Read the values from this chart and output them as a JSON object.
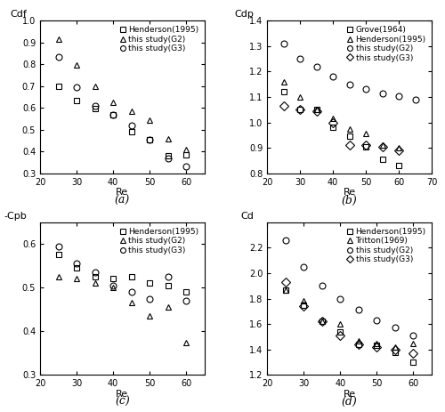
{
  "subplot_a": {
    "ylabel": "Cdf",
    "xlabel": "Re",
    "label": "(a)",
    "xlim": [
      20,
      65
    ],
    "ylim": [
      0.3,
      1.0
    ],
    "yticks": [
      0.3,
      0.4,
      0.5,
      0.6,
      0.7,
      0.8,
      0.9,
      1.0
    ],
    "xticks": [
      20,
      30,
      40,
      50,
      60
    ],
    "series": [
      {
        "label": "Henderson(1995)",
        "marker": "s",
        "x": [
          25,
          30,
          35,
          40,
          45,
          50,
          55,
          60
        ],
        "y": [
          0.7,
          0.635,
          0.595,
          0.57,
          0.49,
          0.455,
          0.38,
          0.385
        ]
      },
      {
        "label": "this study(G2)",
        "marker": "^",
        "x": [
          25,
          30,
          35,
          40,
          45,
          50,
          55,
          60
        ],
        "y": [
          0.915,
          0.795,
          0.7,
          0.625,
          0.585,
          0.545,
          0.46,
          0.41
        ]
      },
      {
        "label": "this study(G3)",
        "marker": "o",
        "x": [
          25,
          30,
          35,
          40,
          45,
          50,
          55,
          60
        ],
        "y": [
          0.835,
          0.695,
          0.61,
          0.57,
          0.52,
          0.455,
          0.37,
          0.33
        ]
      }
    ]
  },
  "subplot_b": {
    "ylabel": "Cdp",
    "xlabel": "Re",
    "label": "(b)",
    "xlim": [
      20,
      70
    ],
    "ylim": [
      0.8,
      1.4
    ],
    "yticks": [
      0.8,
      0.9,
      1.0,
      1.1,
      1.2,
      1.3,
      1.4
    ],
    "xticks": [
      20,
      30,
      40,
      50,
      60,
      70
    ],
    "series": [
      {
        "label": "Grove(1964)",
        "marker": "s",
        "x": [
          25,
          30,
          35,
          40,
          45,
          50,
          55,
          60
        ],
        "y": [
          1.12,
          1.05,
          1.05,
          0.98,
          0.945,
          0.905,
          0.855,
          0.83
        ]
      },
      {
        "label": "Henderson(1995)",
        "marker": "^",
        "x": [
          25,
          30,
          35,
          40,
          45,
          50,
          55,
          60
        ],
        "y": [
          1.16,
          1.1,
          1.05,
          1.015,
          0.975,
          0.955,
          0.91,
          0.9
        ]
      },
      {
        "label": "this study(G2)",
        "marker": "o",
        "x": [
          25,
          30,
          35,
          40,
          45,
          50,
          55,
          60,
          65
        ],
        "y": [
          1.31,
          1.25,
          1.22,
          1.18,
          1.15,
          1.13,
          1.115,
          1.105,
          1.09
        ]
      },
      {
        "label": "this study(G3)",
        "marker": "D",
        "x": [
          25,
          30,
          35,
          40,
          45,
          50,
          55,
          60
        ],
        "y": [
          1.065,
          1.05,
          1.045,
          1.0,
          0.91,
          0.91,
          0.905,
          0.89
        ]
      }
    ]
  },
  "subplot_c": {
    "ylabel": "-Cpb",
    "xlabel": "Re",
    "label": "(c)",
    "xlim": [
      20,
      65
    ],
    "ylim": [
      0.3,
      0.65
    ],
    "yticks": [
      0.3,
      0.4,
      0.5,
      0.6
    ],
    "xticks": [
      20,
      30,
      40,
      50,
      60
    ],
    "series": [
      {
        "label": "Henderson(1995)",
        "marker": "s",
        "x": [
          25,
          30,
          35,
          40,
          45,
          50,
          55,
          60
        ],
        "y": [
          0.575,
          0.545,
          0.525,
          0.52,
          0.525,
          0.51,
          0.505,
          0.49
        ]
      },
      {
        "label": "this study(G2)",
        "marker": "^",
        "x": [
          25,
          30,
          35,
          40,
          45,
          50,
          55,
          60
        ],
        "y": [
          0.525,
          0.52,
          0.51,
          0.5,
          0.465,
          0.435,
          0.455,
          0.375
        ]
      },
      {
        "label": "this study(G3)",
        "marker": "o",
        "x": [
          25,
          30,
          35,
          40,
          45,
          50,
          55,
          60
        ],
        "y": [
          0.595,
          0.555,
          0.535,
          0.505,
          0.49,
          0.475,
          0.525,
          0.47
        ]
      }
    ]
  },
  "subplot_d": {
    "ylabel": "Cd",
    "xlabel": "Re",
    "label": "(d)",
    "xlim": [
      20,
      65
    ],
    "ylim": [
      1.2,
      2.4
    ],
    "yticks": [
      1.2,
      1.4,
      1.6,
      1.8,
      2.0,
      2.2
    ],
    "xticks": [
      20,
      30,
      40,
      50,
      60
    ],
    "series": [
      {
        "label": "Henderson(1995)",
        "marker": "s",
        "x": [
          25,
          30,
          35,
          40,
          45,
          50,
          55,
          60
        ],
        "y": [
          1.87,
          1.75,
          1.62,
          1.54,
          1.44,
          1.43,
          1.38,
          1.3
        ]
      },
      {
        "label": "Tritton(1969)",
        "marker": "^",
        "x": [
          25,
          30,
          35,
          40,
          45,
          50,
          55,
          60
        ],
        "y": [
          1.87,
          1.78,
          1.62,
          1.6,
          1.47,
          1.45,
          1.42,
          1.45
        ]
      },
      {
        "label": "this study(G2)",
        "marker": "o",
        "x": [
          25,
          30,
          35,
          40,
          45,
          50,
          55,
          60
        ],
        "y": [
          2.26,
          2.05,
          1.9,
          1.8,
          1.71,
          1.63,
          1.57,
          1.51
        ]
      },
      {
        "label": "this study(G3)",
        "marker": "D",
        "x": [
          25,
          30,
          35,
          40,
          45,
          50,
          55,
          60
        ],
        "y": [
          1.93,
          1.74,
          1.62,
          1.51,
          1.44,
          1.42,
          1.4,
          1.37
        ]
      }
    ]
  },
  "marker_size": 5,
  "facecolor": "none",
  "edgecolor": "black",
  "font_size": 6.5,
  "label_font_size": 8,
  "tick_font_size": 7,
  "fig_width": 5.0,
  "fig_height": 4.63
}
